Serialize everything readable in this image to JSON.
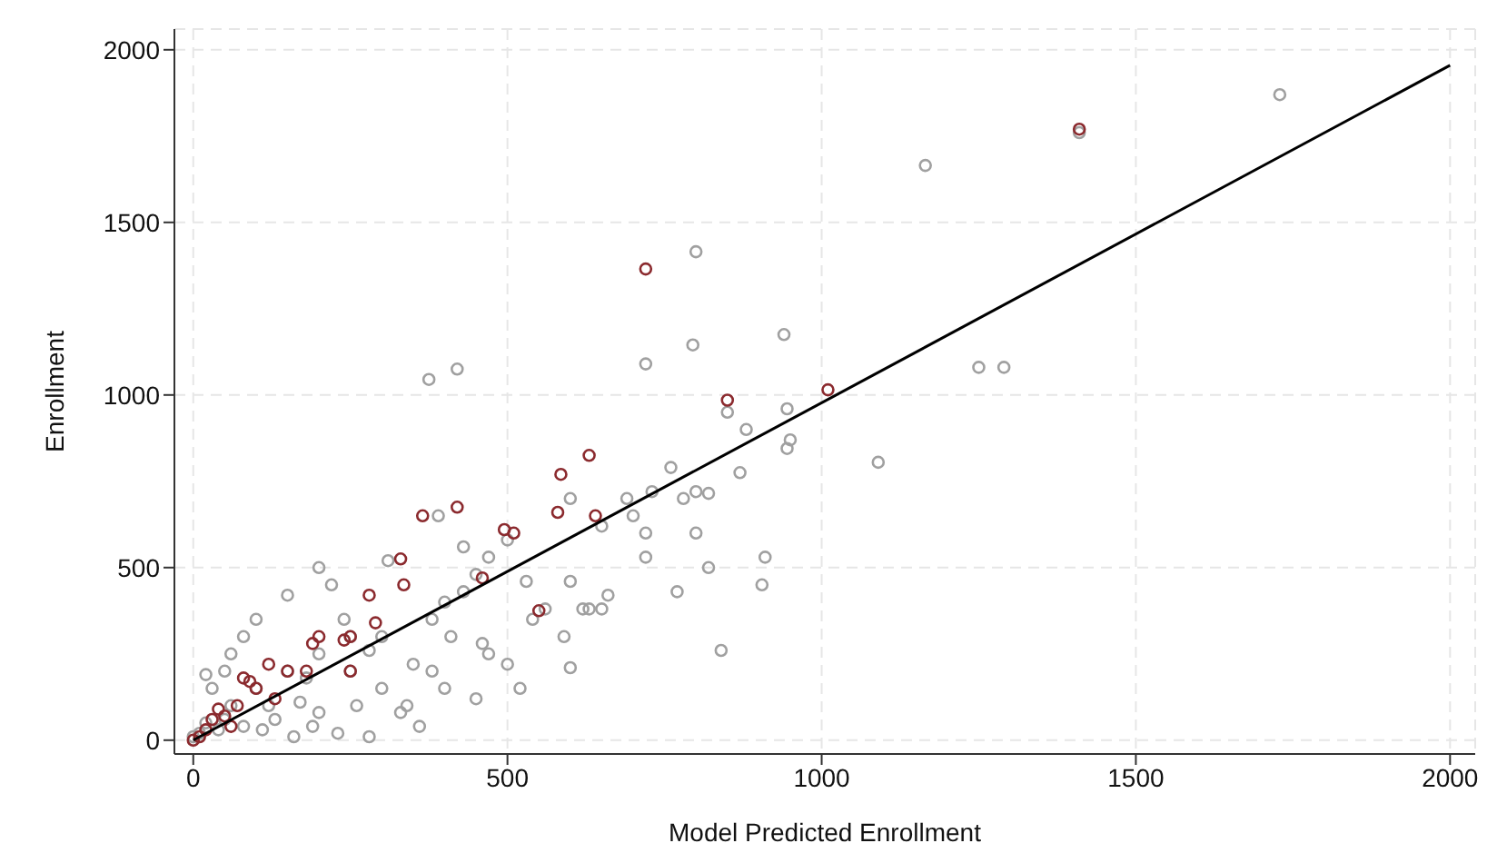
{
  "chart_data": {
    "type": "scatter",
    "xlabel": "Model Predicted Enrollment",
    "ylabel": "Enrollment",
    "xlim": [
      -30,
      2040
    ],
    "ylim": [
      -40,
      2060
    ],
    "xticks": [
      0,
      500,
      1000,
      1500,
      2000
    ],
    "yticks": [
      0,
      500,
      1000,
      1500,
      2000
    ],
    "grid": true,
    "marker": "circle",
    "series": [
      {
        "color": "#a0a0a0",
        "x": [
          1729,
          1410,
          1165,
          1250,
          1290,
          1090,
          940,
          800,
          795,
          720,
          420,
          375,
          945,
          950,
          945,
          910,
          905,
          840,
          870,
          880,
          850,
          800,
          820,
          760,
          780,
          690,
          730,
          700,
          600,
          650,
          720,
          720,
          800,
          770,
          820,
          660,
          600,
          530,
          590,
          620,
          630,
          600,
          650,
          400,
          380,
          410,
          450,
          430,
          380,
          350,
          340,
          360,
          470,
          390,
          430,
          500,
          310,
          300,
          250,
          280,
          200,
          220,
          150,
          100,
          80,
          60,
          50,
          20,
          30,
          60,
          100,
          150,
          200,
          250,
          260,
          200,
          130,
          80,
          40,
          20,
          10,
          0,
          300,
          330,
          400,
          450,
          500,
          520,
          460,
          540,
          560,
          470,
          240,
          180,
          120,
          170,
          230,
          280,
          190,
          50,
          110,
          160
        ],
        "values": [
          1870,
          1760,
          1665,
          1080,
          1080,
          805,
          1175,
          1415,
          1145,
          1090,
          1075,
          1045,
          960,
          870,
          845,
          530,
          450,
          260,
          775,
          900,
          950,
          720,
          715,
          790,
          700,
          700,
          720,
          650,
          700,
          620,
          530,
          600,
          600,
          430,
          500,
          420,
          460,
          460,
          300,
          380,
          380,
          210,
          380,
          400,
          350,
          300,
          480,
          430,
          200,
          220,
          100,
          40,
          530,
          650,
          560,
          580,
          520,
          300,
          300,
          260,
          500,
          450,
          420,
          350,
          300,
          250,
          200,
          190,
          150,
          100,
          150,
          200,
          250,
          200,
          100,
          80,
          60,
          40,
          30,
          50,
          20,
          10,
          150,
          80,
          150,
          120,
          220,
          150,
          280,
          350,
          380,
          250,
          350,
          180,
          100,
          110,
          20,
          10,
          40,
          60,
          30,
          10
        ]
      },
      {
        "color": "#8b2a2e",
        "x": [
          1410,
          1010,
          850,
          720,
          630,
          585,
          640,
          580,
          495,
          510,
          420,
          365,
          550,
          460,
          330,
          335,
          280,
          250,
          240,
          290,
          200,
          190,
          180,
          250,
          150,
          80,
          90,
          100,
          120,
          70,
          40,
          30,
          50,
          20,
          10,
          0,
          60,
          130
        ],
        "values": [
          1770,
          1015,
          985,
          1365,
          825,
          770,
          650,
          660,
          610,
          600,
          675,
          650,
          375,
          470,
          525,
          450,
          420,
          300,
          290,
          340,
          300,
          280,
          200,
          200,
          200,
          180,
          170,
          150,
          220,
          100,
          90,
          60,
          70,
          30,
          10,
          0,
          40,
          120
        ]
      },
      {
        "type": "line",
        "color": "#000000",
        "marker": "none",
        "x": [
          0,
          2000
        ],
        "values": [
          0,
          1955
        ]
      }
    ]
  }
}
